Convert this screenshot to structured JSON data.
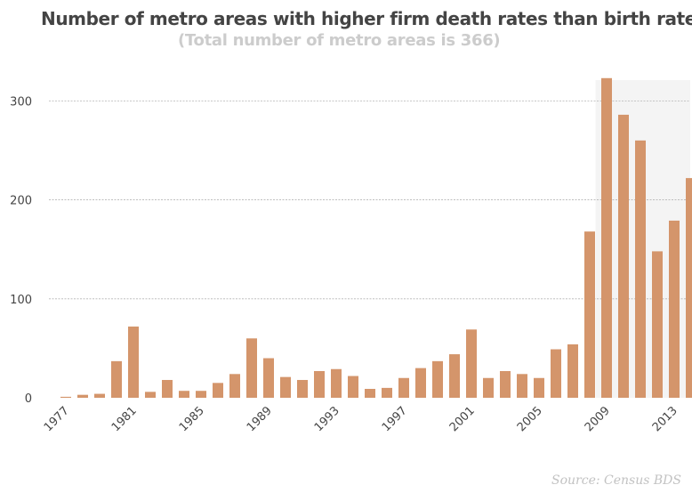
{
  "chart_data": {
    "type": "bar",
    "title": "Number of metro areas with higher firm death rates than birth rates",
    "subtitle": "(Total number of metro areas is 366)",
    "source": "Source: Census BDS",
    "xlabel": "",
    "ylabel": "",
    "categories": [
      "1977",
      "1978",
      "1979",
      "1980",
      "1981",
      "1982",
      "1983",
      "1984",
      "1985",
      "1986",
      "1987",
      "1988",
      "1989",
      "1990",
      "1991",
      "1992",
      "1993",
      "1994",
      "1995",
      "1996",
      "1997",
      "1998",
      "1999",
      "2000",
      "2001",
      "2002",
      "2003",
      "2004",
      "2005",
      "2006",
      "2007",
      "2008",
      "2009",
      "2010",
      "2011",
      "2012",
      "2013",
      "2014"
    ],
    "values": [
      1,
      3,
      4,
      37,
      72,
      6,
      18,
      7,
      7,
      15,
      24,
      60,
      40,
      21,
      18,
      27,
      29,
      22,
      9,
      10,
      20,
      30,
      37,
      44,
      69,
      20,
      27,
      24,
      20,
      49,
      54,
      168,
      323,
      286,
      260,
      148,
      179,
      222
    ],
    "x_tick_labels": [
      "1977",
      "1981",
      "1985",
      "1989",
      "1993",
      "1997",
      "2001",
      "2005",
      "2009",
      "2013"
    ],
    "y_ticks": [
      0,
      100,
      200,
      300
    ],
    "ylim": [
      0,
      330
    ],
    "grid": true,
    "highlight_range": [
      "2009",
      "2014"
    ],
    "colors": {
      "bar": "#d4956b",
      "highlight_bg": "#f4f4f4",
      "grid": "#b5b5b5",
      "title": "#444444",
      "subtitle": "#cccccc"
    }
  }
}
